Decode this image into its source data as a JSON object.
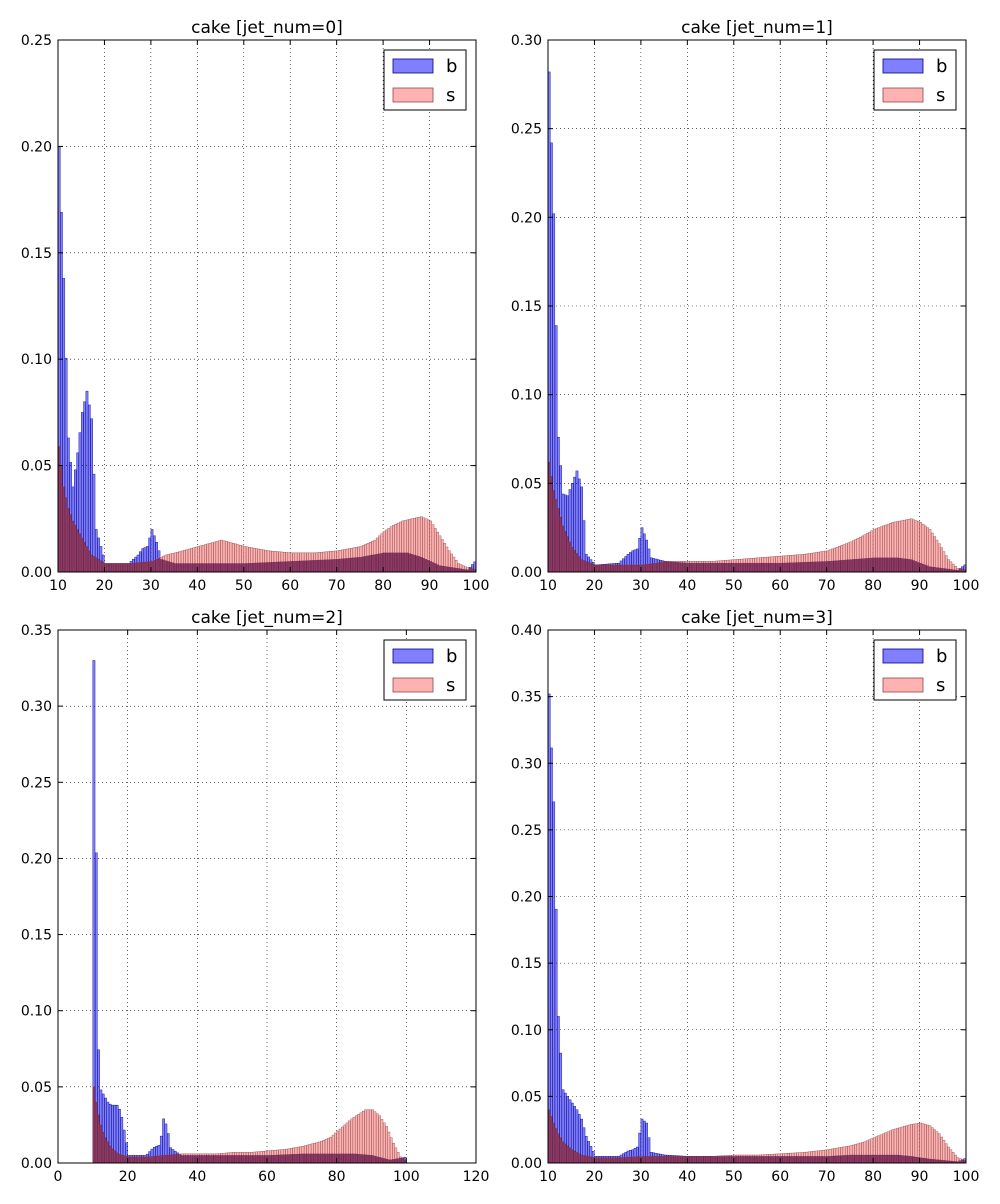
{
  "colors": {
    "b": "#0000ff",
    "s": "#ff7f7f",
    "overlap": "#5a0028"
  },
  "chart_data": [
    {
      "type": "bar",
      "title": "cake [jet_num=0]",
      "xlim": [
        10,
        100
      ],
      "ylim": [
        0,
        0.25
      ],
      "xticks": [
        "10",
        "20",
        "30",
        "40",
        "50",
        "60",
        "70",
        "80",
        "90",
        "100"
      ],
      "yticks": [
        "0.00",
        "0.05",
        "0.10",
        "0.15",
        "0.20",
        "0.25"
      ],
      "grid": true,
      "legend_position": "top-right",
      "legend": [
        "b",
        "s"
      ],
      "series": [
        {
          "name": "b",
          "x": [
            10,
            11,
            12,
            13,
            14,
            15,
            16,
            17,
            18,
            20,
            25,
            27,
            28,
            29,
            30,
            31,
            32,
            35,
            40,
            50,
            60,
            70,
            75,
            80,
            85,
            88,
            90,
            92,
            95,
            98,
            100
          ],
          "values": [
            0.2,
            0.138,
            0.063,
            0.04,
            0.056,
            0.075,
            0.085,
            0.072,
            0.02,
            0.004,
            0.004,
            0.008,
            0.011,
            0.012,
            0.02,
            0.014,
            0.006,
            0.004,
            0.004,
            0.004,
            0.005,
            0.006,
            0.007,
            0.009,
            0.009,
            0.007,
            0.005,
            0.003,
            0.002,
            0.001,
            0.006
          ]
        },
        {
          "name": "s",
          "x": [
            10,
            11,
            12,
            13,
            15,
            17,
            20,
            25,
            30,
            33,
            35,
            40,
            45,
            50,
            55,
            60,
            65,
            70,
            75,
            78,
            80,
            82,
            84,
            86,
            88,
            90,
            92,
            94,
            96,
            98,
            100
          ],
          "values": [
            0.059,
            0.04,
            0.03,
            0.024,
            0.016,
            0.008,
            0.004,
            0.004,
            0.005,
            0.008,
            0.009,
            0.012,
            0.015,
            0.012,
            0.01,
            0.009,
            0.009,
            0.01,
            0.012,
            0.015,
            0.019,
            0.022,
            0.024,
            0.025,
            0.026,
            0.024,
            0.017,
            0.01,
            0.004,
            0.002,
            0.001
          ]
        }
      ]
    },
    {
      "type": "bar",
      "title": "cake [jet_num=1]",
      "xlim": [
        10,
        100
      ],
      "ylim": [
        0,
        0.3
      ],
      "xticks": [
        "10",
        "20",
        "30",
        "40",
        "50",
        "60",
        "70",
        "80",
        "90",
        "100"
      ],
      "yticks": [
        "0.00",
        "0.05",
        "0.10",
        "0.15",
        "0.20",
        "0.25",
        "0.30"
      ],
      "grid": true,
      "legend_position": "top-right",
      "legend": [
        "b",
        "s"
      ],
      "series": [
        {
          "name": "b",
          "x": [
            10,
            11,
            12,
            13,
            14,
            15,
            16,
            17,
            18,
            20,
            25,
            27,
            28,
            29,
            30,
            31,
            32,
            35,
            40,
            50,
            60,
            70,
            75,
            80,
            85,
            88,
            90,
            92,
            95,
            98,
            100
          ],
          "values": [
            0.282,
            0.202,
            0.076,
            0.044,
            0.043,
            0.05,
            0.057,
            0.048,
            0.01,
            0.004,
            0.005,
            0.01,
            0.012,
            0.013,
            0.025,
            0.018,
            0.008,
            0.006,
            0.005,
            0.005,
            0.005,
            0.006,
            0.007,
            0.008,
            0.008,
            0.007,
            0.005,
            0.003,
            0.002,
            0.001,
            0.005
          ]
        },
        {
          "name": "s",
          "x": [
            10,
            11,
            12,
            13,
            15,
            17,
            20,
            25,
            30,
            33,
            35,
            40,
            45,
            50,
            55,
            60,
            65,
            70,
            75,
            78,
            80,
            82,
            84,
            86,
            88,
            90,
            92,
            94,
            96,
            98,
            100
          ],
          "values": [
            0.062,
            0.046,
            0.036,
            0.026,
            0.014,
            0.007,
            0.004,
            0.004,
            0.004,
            0.005,
            0.006,
            0.006,
            0.006,
            0.007,
            0.008,
            0.009,
            0.01,
            0.012,
            0.017,
            0.021,
            0.024,
            0.026,
            0.028,
            0.029,
            0.03,
            0.028,
            0.024,
            0.016,
            0.007,
            0.002,
            0.001
          ]
        }
      ]
    },
    {
      "type": "bar",
      "title": "cake [jet_num=2]",
      "xlim": [
        0,
        120
      ],
      "ylim": [
        0,
        0.35
      ],
      "xticks": [
        "0",
        "20",
        "40",
        "60",
        "80",
        "100",
        "120"
      ],
      "yticks": [
        "0.00",
        "0.05",
        "0.10",
        "0.15",
        "0.20",
        "0.25",
        "0.30",
        "0.35"
      ],
      "grid": true,
      "legend_position": "top-right",
      "legend": [
        "b",
        "s"
      ],
      "series": [
        {
          "name": "b",
          "x": [
            10,
            10.5,
            11,
            11.5,
            12,
            13,
            14,
            15,
            16,
            17,
            18,
            20,
            25,
            27,
            28,
            29,
            30,
            31,
            32,
            35,
            40,
            50,
            60,
            70,
            80,
            85,
            90,
            95,
            100
          ],
          "values": [
            0.33,
            0.256,
            0.099,
            0.062,
            0.048,
            0.044,
            0.04,
            0.038,
            0.038,
            0.038,
            0.03,
            0.005,
            0.005,
            0.01,
            0.011,
            0.012,
            0.029,
            0.024,
            0.01,
            0.005,
            0.005,
            0.005,
            0.005,
            0.006,
            0.006,
            0.006,
            0.005,
            0.002,
            0.004
          ]
        },
        {
          "name": "s",
          "x": [
            10,
            11,
            12,
            13,
            15,
            17,
            20,
            25,
            30,
            35,
            40,
            45,
            50,
            55,
            60,
            65,
            70,
            75,
            78,
            80,
            82,
            84,
            86,
            88,
            90,
            92,
            94,
            96,
            98,
            100
          ],
          "values": [
            0.05,
            0.035,
            0.025,
            0.018,
            0.01,
            0.006,
            0.004,
            0.004,
            0.005,
            0.006,
            0.006,
            0.006,
            0.007,
            0.007,
            0.008,
            0.009,
            0.011,
            0.014,
            0.017,
            0.021,
            0.025,
            0.029,
            0.032,
            0.035,
            0.035,
            0.031,
            0.024,
            0.013,
            0.004,
            0.001
          ]
        }
      ]
    },
    {
      "type": "bar",
      "title": "cake [jet_num=3]",
      "xlim": [
        10,
        100
      ],
      "ylim": [
        0,
        0.4
      ],
      "xticks": [
        "10",
        "20",
        "30",
        "40",
        "50",
        "60",
        "70",
        "80",
        "90",
        "100"
      ],
      "yticks": [
        "0.00",
        "0.05",
        "0.10",
        "0.15",
        "0.20",
        "0.25",
        "0.30",
        "0.35",
        "0.40"
      ],
      "grid": true,
      "legend_position": "top-right",
      "legend": [
        "b",
        "s"
      ],
      "series": [
        {
          "name": "b",
          "x": [
            10,
            11,
            12,
            13,
            14,
            15,
            16,
            17,
            18,
            20,
            25,
            27,
            28,
            29,
            30,
            31,
            32,
            35,
            40,
            50,
            60,
            70,
            75,
            80,
            85,
            88,
            90,
            92,
            95,
            98,
            100
          ],
          "values": [
            0.352,
            0.271,
            0.11,
            0.055,
            0.05,
            0.045,
            0.04,
            0.033,
            0.02,
            0.005,
            0.005,
            0.009,
            0.01,
            0.012,
            0.033,
            0.03,
            0.008,
            0.006,
            0.005,
            0.005,
            0.005,
            0.005,
            0.006,
            0.006,
            0.006,
            0.005,
            0.004,
            0.003,
            0.002,
            0.001,
            0.004
          ]
        },
        {
          "name": "s",
          "x": [
            10,
            11,
            12,
            13,
            15,
            17,
            20,
            25,
            30,
            35,
            40,
            45,
            50,
            55,
            60,
            65,
            70,
            75,
            78,
            80,
            82,
            84,
            86,
            88,
            90,
            92,
            94,
            96,
            98,
            100
          ],
          "values": [
            0.04,
            0.03,
            0.022,
            0.016,
            0.01,
            0.006,
            0.004,
            0.004,
            0.005,
            0.005,
            0.005,
            0.005,
            0.006,
            0.006,
            0.007,
            0.008,
            0.01,
            0.013,
            0.016,
            0.019,
            0.022,
            0.025,
            0.027,
            0.029,
            0.03,
            0.028,
            0.022,
            0.012,
            0.004,
            0.001
          ]
        }
      ]
    }
  ]
}
